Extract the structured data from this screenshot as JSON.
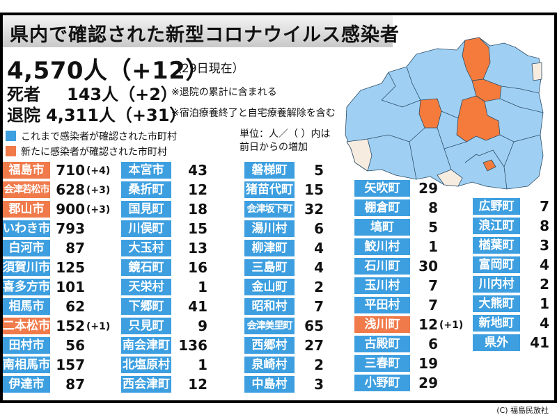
{
  "title": "県内で確認された新型コロナウイルス感染者",
  "summary": {
    "total": "4,570人（+12）",
    "as_of": "（29日現在）",
    "deaths_label": "死者",
    "deaths": "143人（+2）",
    "deaths_note": "※退院の累計に含まれる",
    "discharged_label": "退院",
    "discharged": "4,311人（+31）",
    "discharged_note": "※宿泊療養終了と自宅療養解除を含む"
  },
  "legend": {
    "existing": "これまで感染者が確認された市町村",
    "new": "新たに感染者が確認された市町村",
    "unit": "単位：人／（ ）内は前日からの増加"
  },
  "colors": {
    "existing": "#3d9fe0",
    "new": "#f07a4a",
    "map_existing": "#9fd0f4",
    "map_new": "#f47b3c",
    "map_none": "#f7ece0"
  },
  "columns": [
    [
      {
        "name": "福島市",
        "value": "710",
        "diff": "(+4)",
        "new": true
      },
      {
        "name": "会津若松市",
        "value": "628",
        "diff": "(+3)",
        "new": true
      },
      {
        "name": "郡山市",
        "value": "900",
        "diff": "(+3)",
        "new": true
      },
      {
        "name": "いわき市",
        "value": "793",
        "diff": "",
        "new": false
      },
      {
        "name": "白河市",
        "value": "87",
        "diff": "",
        "new": false
      },
      {
        "name": "須賀川市",
        "value": "125",
        "diff": "",
        "new": false
      },
      {
        "name": "喜多方市",
        "value": "101",
        "diff": "",
        "new": false
      },
      {
        "name": "相馬市",
        "value": "62",
        "diff": "",
        "new": false
      },
      {
        "name": "二本松市",
        "value": "152",
        "diff": "(+1)",
        "new": true
      },
      {
        "name": "田村市",
        "value": "56",
        "diff": "",
        "new": false
      },
      {
        "name": "南相馬市",
        "value": "157",
        "diff": "",
        "new": false
      },
      {
        "name": "伊達市",
        "value": "87",
        "diff": "",
        "new": false
      }
    ],
    [
      {
        "name": "本宮市",
        "value": "43",
        "diff": "",
        "new": false
      },
      {
        "name": "桑折町",
        "value": "12",
        "diff": "",
        "new": false
      },
      {
        "name": "国見町",
        "value": "18",
        "diff": "",
        "new": false
      },
      {
        "name": "川俣町",
        "value": "15",
        "diff": "",
        "new": false
      },
      {
        "name": "大玉村",
        "value": "13",
        "diff": "",
        "new": false
      },
      {
        "name": "鏡石町",
        "value": "16",
        "diff": "",
        "new": false
      },
      {
        "name": "天栄村",
        "value": "1",
        "diff": "",
        "new": false
      },
      {
        "name": "下郷町",
        "value": "41",
        "diff": "",
        "new": false
      },
      {
        "name": "只見町",
        "value": "9",
        "diff": "",
        "new": false
      },
      {
        "name": "南会津町",
        "value": "136",
        "diff": "",
        "new": false
      },
      {
        "name": "北塩原村",
        "value": "1",
        "diff": "",
        "new": false
      },
      {
        "name": "西会津町",
        "value": "12",
        "diff": "",
        "new": false
      }
    ],
    [
      {
        "name": "磐梯町",
        "value": "5",
        "diff": "",
        "new": false
      },
      {
        "name": "猪苗代町",
        "value": "15",
        "diff": "",
        "new": false
      },
      {
        "name": "会津坂下町",
        "value": "32",
        "diff": "",
        "new": false
      },
      {
        "name": "湯川村",
        "value": "6",
        "diff": "",
        "new": false
      },
      {
        "name": "柳津町",
        "value": "4",
        "diff": "",
        "new": false
      },
      {
        "name": "三島町",
        "value": "4",
        "diff": "",
        "new": false
      },
      {
        "name": "金山町",
        "value": "2",
        "diff": "",
        "new": false
      },
      {
        "name": "昭和村",
        "value": "7",
        "diff": "",
        "new": false
      },
      {
        "name": "会津美里町",
        "value": "65",
        "diff": "",
        "new": false
      },
      {
        "name": "西郷村",
        "value": "27",
        "diff": "",
        "new": false
      },
      {
        "name": "泉崎村",
        "value": "2",
        "diff": "",
        "new": false
      },
      {
        "name": "中島村",
        "value": "3",
        "diff": "",
        "new": false
      }
    ],
    [
      {
        "name": "矢吹町",
        "value": "29",
        "diff": "",
        "new": false
      },
      {
        "name": "棚倉町",
        "value": "8",
        "diff": "",
        "new": false
      },
      {
        "name": "塙町",
        "value": "5",
        "diff": "",
        "new": false
      },
      {
        "name": "鮫川村",
        "value": "1",
        "diff": "",
        "new": false
      },
      {
        "name": "石川町",
        "value": "30",
        "diff": "",
        "new": false
      },
      {
        "name": "玉川村",
        "value": "7",
        "diff": "",
        "new": false
      },
      {
        "name": "平田村",
        "value": "7",
        "diff": "",
        "new": false
      },
      {
        "name": "浅川町",
        "value": "12",
        "diff": "(+1)",
        "new": true
      },
      {
        "name": "古殿町",
        "value": "6",
        "diff": "",
        "new": false
      },
      {
        "name": "三春町",
        "value": "19",
        "diff": "",
        "new": false
      },
      {
        "name": "小野町",
        "value": "29",
        "diff": "",
        "new": false
      }
    ],
    [
      {
        "name": "広野町",
        "value": "7",
        "diff": "",
        "new": false
      },
      {
        "name": "浪江町",
        "value": "8",
        "diff": "",
        "new": false
      },
      {
        "name": "楢葉町",
        "value": "3",
        "diff": "",
        "new": false
      },
      {
        "name": "富岡町",
        "value": "4",
        "diff": "",
        "new": false
      },
      {
        "name": "川内村",
        "value": "2",
        "diff": "",
        "new": false
      },
      {
        "name": "大熊町",
        "value": "1",
        "diff": "",
        "new": false
      },
      {
        "name": "新地町",
        "value": "4",
        "diff": "",
        "new": false
      },
      {
        "name": "県外",
        "value": "41",
        "diff": "",
        "new": false
      }
    ]
  ],
  "credit": "(C) 福島民放社"
}
